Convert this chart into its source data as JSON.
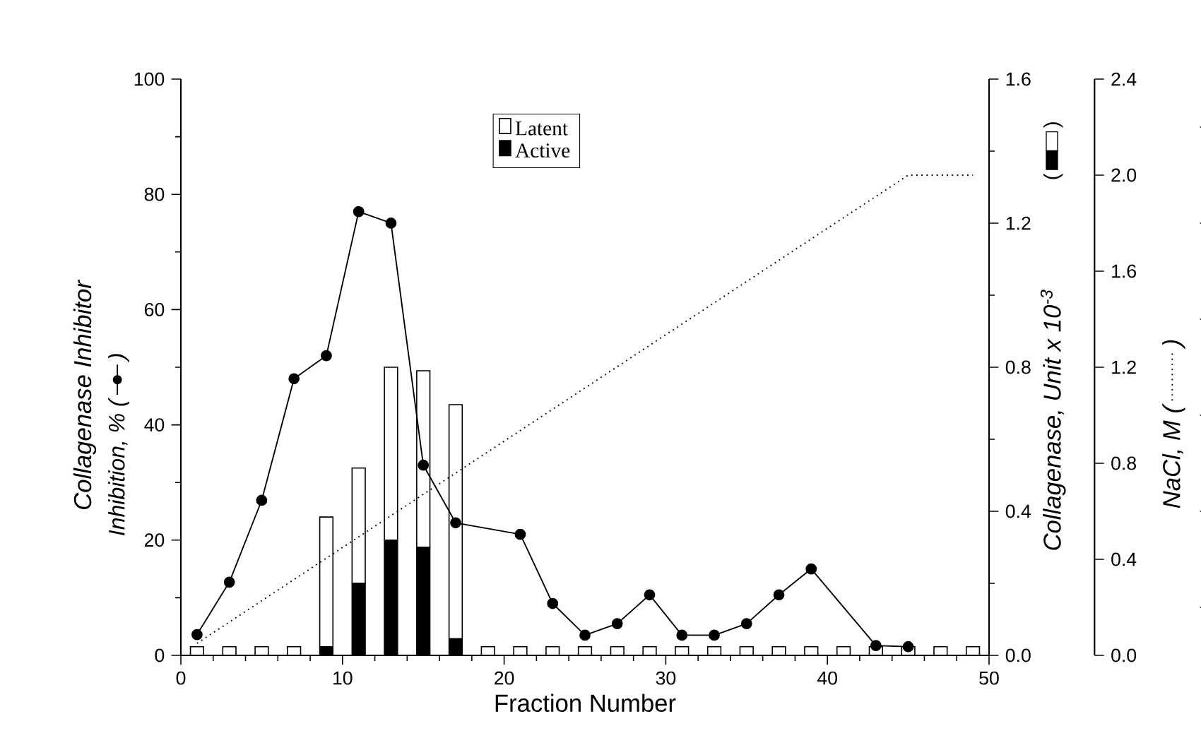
{
  "chart_data": {
    "type": "bar",
    "xlabel": "Fraction Number",
    "ylabel": "Collagenase Inhibitor",
    "y2label": "Collagenase, Unit x 10$^{-3}$",
    "y3label": "NaCl, M (",
    "annotations": [
      "Inhibition, % (",
      ")",
      "(",
      ")",
      ")"
    ],
    "x": [
      1,
      3,
      5,
      7,
      9,
      11,
      13,
      15,
      17,
      19,
      21,
      23,
      25,
      27,
      29,
      31,
      33,
      35,
      37,
      39,
      41,
      43,
      45,
      47,
      49
    ],
    "stacked": true,
    "legend": "top",
    "xlim": [
      0,
      50
    ],
    "xticks": [
      0,
      10,
      20,
      30,
      40,
      50
    ],
    "ylim": [
      0,
      100
    ],
    "yticks": [
      0,
      20,
      40,
      60,
      80,
      100
    ],
    "y2lim": [
      0,
      1.6
    ],
    "y2ticks": [
      {
        "value": 0,
        "label": "0.0"
      },
      {
        "value": 0.4,
        "label": "0.4"
      },
      {
        "value": 0.8,
        "label": "0.8"
      },
      {
        "value": 1.2,
        "label": "1.2"
      },
      {
        "value": 1.6,
        "label": "1.6"
      }
    ],
    "y3lim": [
      0,
      2.4
    ],
    "y3ticks": [
      {
        "value": 0,
        "label": "0.0"
      },
      {
        "value": 0.4,
        "label": "0.4"
      },
      {
        "value": 0.8,
        "label": "0.8"
      },
      {
        "value": 1.2,
        "label": "1.2"
      },
      {
        "value": 1.6,
        "label": "1.6"
      },
      {
        "value": 2.0,
        "label": "2.0"
      },
      {
        "value": 2.4,
        "label": "2.4"
      }
    ],
    "series": [
      {
        "name": "Active",
        "axis": "y2",
        "color": "#000000",
        "values": [
          0,
          0,
          0,
          0,
          0.024,
          0.2,
          0.32,
          0.3,
          0.046,
          0,
          0,
          0,
          0,
          0,
          0,
          0,
          0,
          0,
          0,
          0,
          0,
          0,
          0,
          0,
          0
        ]
      },
      {
        "name": "Latent",
        "axis": "y2",
        "color": "#ffffff",
        "values": [
          0.024,
          0.024,
          0.024,
          0.024,
          0.36,
          0.32,
          0.48,
          0.49,
          0.65,
          0.024,
          0.024,
          0.024,
          0.024,
          0.024,
          0.024,
          0.024,
          0.024,
          0.024,
          0.024,
          0.024,
          0.024,
          0.024,
          0.024,
          0.024,
          0.024
        ]
      },
      {
        "type": "line",
        "axis": "y",
        "color": "#000000",
        "marker": "circle",
        "x": [
          1,
          3,
          5,
          7,
          9,
          11,
          13,
          15,
          17,
          21,
          23,
          25,
          27,
          29,
          31,
          33,
          35,
          37,
          39,
          43,
          45
        ],
        "values": [
          3.6,
          12.7,
          26.9,
          48,
          52,
          77,
          75,
          33,
          23,
          21,
          9,
          3.5,
          5.5,
          10.5,
          3.5,
          3.5,
          5.5,
          10.5,
          15,
          1.7,
          1.5
        ]
      },
      {
        "type": "line",
        "axis": "y3",
        "color": "#000000",
        "line_style": "dotted",
        "x": [
          1,
          45,
          49
        ],
        "values": [
          0.05,
          2.0,
          2.0
        ]
      }
    ]
  }
}
